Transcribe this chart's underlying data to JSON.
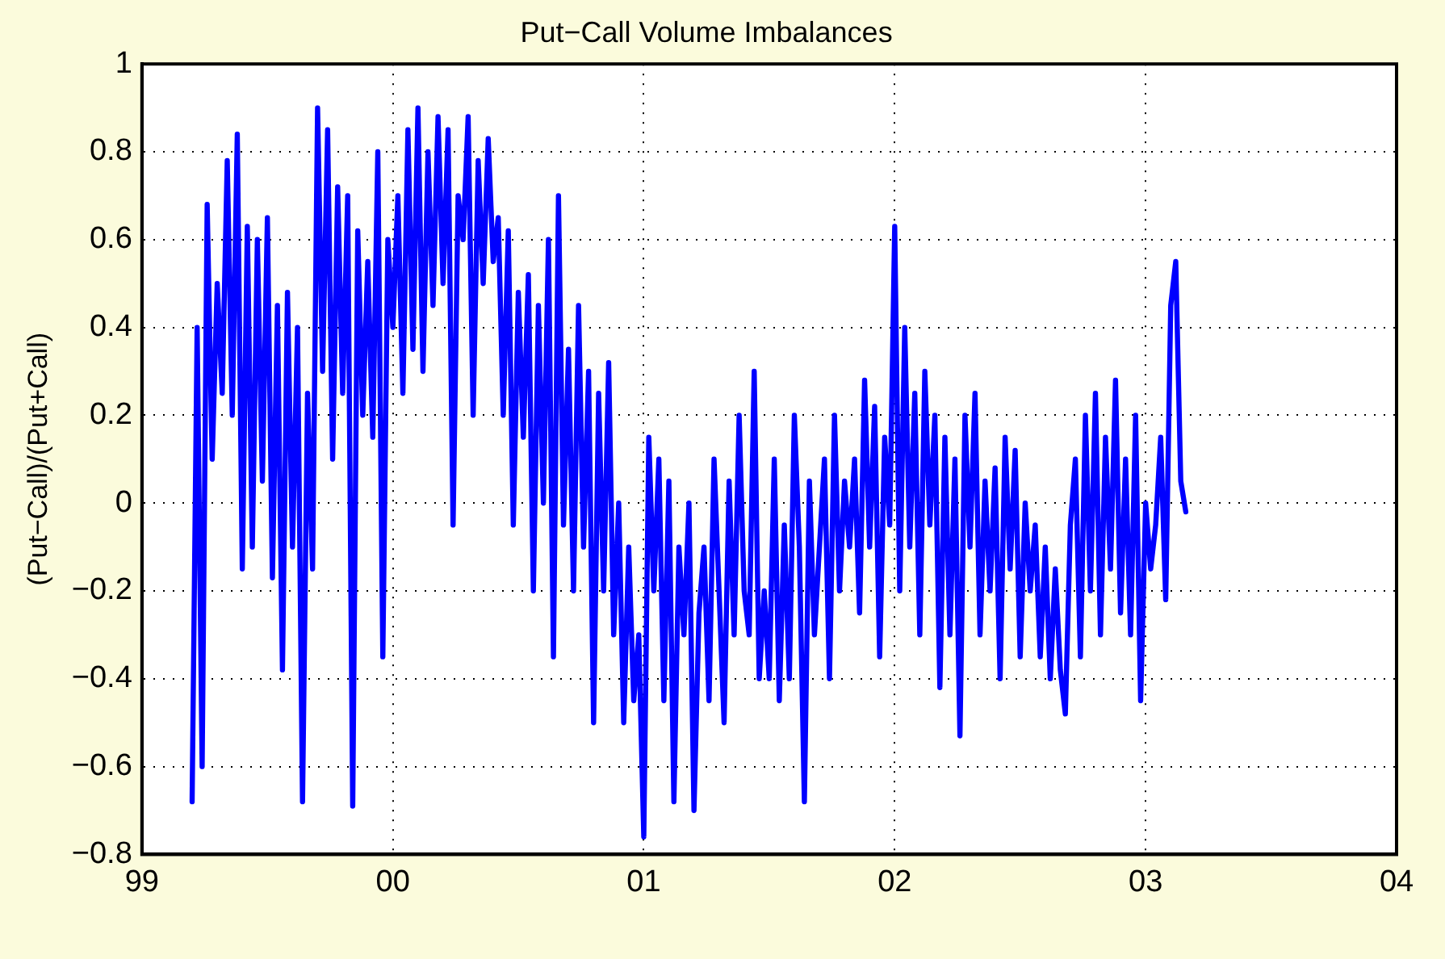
{
  "chart_data": {
    "type": "line",
    "title": "Put−Call Volume Imbalances",
    "ylabel": "(Put−Call)/(Put+Call)",
    "xlim": [
      1999,
      2004
    ],
    "xticks": [
      {
        "value": 1999,
        "label": "99"
      },
      {
        "value": 2000,
        "label": "00"
      },
      {
        "value": 2001,
        "label": "01"
      },
      {
        "value": 2002,
        "label": "02"
      },
      {
        "value": 2003,
        "label": "03"
      },
      {
        "value": 2004,
        "label": "04"
      }
    ],
    "ylim": [
      -0.8,
      1
    ],
    "yticks": [
      {
        "value": -0.8,
        "label": "−0.8"
      },
      {
        "value": -0.6,
        "label": "−0.6"
      },
      {
        "value": -0.4,
        "label": "−0.4"
      },
      {
        "value": -0.2,
        "label": "−0.2"
      },
      0,
      0.2,
      0.4,
      0.6,
      0.8,
      1
    ],
    "grid": true,
    "line_style": "solid",
    "series": [
      {
        "color": "#0000ff",
        "x": [
          1999.2,
          1999.22,
          1999.24,
          1999.26,
          1999.28,
          1999.3,
          1999.32,
          1999.34,
          1999.36,
          1999.38,
          1999.4,
          1999.42,
          1999.44,
          1999.46,
          1999.48,
          1999.5,
          1999.52,
          1999.54,
          1999.56,
          1999.58,
          1999.6,
          1999.62,
          1999.64,
          1999.66,
          1999.68,
          1999.7,
          1999.72,
          1999.74,
          1999.76,
          1999.78,
          1999.8,
          1999.82,
          1999.84,
          1999.86,
          1999.88,
          1999.9,
          1999.92,
          1999.94,
          1999.96,
          1999.98,
          2000.0,
          2000.02,
          2000.04,
          2000.06,
          2000.08,
          2000.1,
          2000.12,
          2000.14,
          2000.16,
          2000.18,
          2000.2,
          2000.22,
          2000.24,
          2000.26,
          2000.28,
          2000.3,
          2000.32,
          2000.34,
          2000.36,
          2000.38,
          2000.4,
          2000.42,
          2000.44,
          2000.46,
          2000.48,
          2000.5,
          2000.52,
          2000.54,
          2000.56,
          2000.58,
          2000.6,
          2000.62,
          2000.64,
          2000.66,
          2000.68,
          2000.7,
          2000.72,
          2000.74,
          2000.76,
          2000.78,
          2000.8,
          2000.82,
          2000.84,
          2000.86,
          2000.88,
          2000.9,
          2000.92,
          2000.94,
          2000.96,
          2000.98,
          2001.0,
          2001.02,
          2001.04,
          2001.06,
          2001.08,
          2001.1,
          2001.12,
          2001.14,
          2001.16,
          2001.18,
          2001.2,
          2001.22,
          2001.24,
          2001.26,
          2001.28,
          2001.3,
          2001.32,
          2001.34,
          2001.36,
          2001.38,
          2001.4,
          2001.42,
          2001.44,
          2001.46,
          2001.48,
          2001.5,
          2001.52,
          2001.54,
          2001.56,
          2001.58,
          2001.6,
          2001.62,
          2001.64,
          2001.66,
          2001.68,
          2001.7,
          2001.72,
          2001.74,
          2001.76,
          2001.78,
          2001.8,
          2001.82,
          2001.84,
          2001.86,
          2001.88,
          2001.9,
          2001.92,
          2001.94,
          2001.96,
          2001.98,
          2002.0,
          2002.02,
          2002.04,
          2002.06,
          2002.08,
          2002.1,
          2002.12,
          2002.14,
          2002.16,
          2002.18,
          2002.2,
          2002.22,
          2002.24,
          2002.26,
          2002.28,
          2002.3,
          2002.32,
          2002.34,
          2002.36,
          2002.38,
          2002.4,
          2002.42,
          2002.44,
          2002.46,
          2002.48,
          2002.5,
          2002.52,
          2002.54,
          2002.56,
          2002.58,
          2002.6,
          2002.62,
          2002.64,
          2002.66,
          2002.68,
          2002.7,
          2002.72,
          2002.74,
          2002.76,
          2002.78,
          2002.8,
          2002.82,
          2002.84,
          2002.86,
          2002.88,
          2002.9,
          2002.92,
          2002.94,
          2002.96,
          2002.98,
          2003.0,
          2003.02,
          2003.04,
          2003.06,
          2003.08,
          2003.1,
          2003.12,
          2003.14,
          2003.16
        ],
        "values": [
          -0.68,
          0.4,
          -0.6,
          0.68,
          0.1,
          0.5,
          0.25,
          0.78,
          0.2,
          0.84,
          -0.15,
          0.63,
          -0.1,
          0.6,
          0.05,
          0.65,
          -0.17,
          0.45,
          -0.38,
          0.48,
          -0.1,
          0.4,
          -0.68,
          0.25,
          -0.15,
          0.9,
          0.3,
          0.85,
          0.1,
          0.72,
          0.25,
          0.7,
          -0.69,
          0.62,
          0.2,
          0.55,
          0.15,
          0.8,
          -0.35,
          0.6,
          0.4,
          0.7,
          0.25,
          0.85,
          0.35,
          0.9,
          0.3,
          0.8,
          0.45,
          0.88,
          0.5,
          0.85,
          -0.05,
          0.7,
          0.6,
          0.88,
          0.2,
          0.78,
          0.5,
          0.83,
          0.55,
          0.65,
          0.2,
          0.62,
          -0.05,
          0.48,
          0.15,
          0.52,
          -0.2,
          0.45,
          0.0,
          0.6,
          -0.35,
          0.7,
          -0.05,
          0.35,
          -0.2,
          0.45,
          -0.1,
          0.3,
          -0.5,
          0.25,
          -0.2,
          0.32,
          -0.3,
          0.0,
          -0.5,
          -0.1,
          -0.45,
          -0.3,
          -0.76,
          0.15,
          -0.2,
          0.1,
          -0.45,
          0.05,
          -0.68,
          -0.1,
          -0.3,
          0.0,
          -0.7,
          -0.25,
          -0.1,
          -0.45,
          0.1,
          -0.2,
          -0.5,
          0.05,
          -0.3,
          0.2,
          -0.2,
          -0.3,
          0.3,
          -0.4,
          -0.2,
          -0.4,
          0.1,
          -0.45,
          -0.05,
          -0.4,
          0.2,
          -0.1,
          -0.68,
          0.05,
          -0.3,
          -0.1,
          0.1,
          -0.4,
          0.2,
          -0.2,
          0.05,
          -0.1,
          0.1,
          -0.25,
          0.28,
          -0.1,
          0.22,
          -0.35,
          0.15,
          -0.05,
          0.63,
          -0.2,
          0.4,
          -0.1,
          0.25,
          -0.3,
          0.3,
          -0.05,
          0.2,
          -0.42,
          0.15,
          -0.3,
          0.1,
          -0.53,
          0.2,
          -0.1,
          0.25,
          -0.3,
          0.05,
          -0.2,
          0.08,
          -0.4,
          0.15,
          -0.15,
          0.12,
          -0.35,
          0.0,
          -0.2,
          -0.05,
          -0.35,
          -0.1,
          -0.4,
          -0.15,
          -0.38,
          -0.48,
          -0.05,
          0.1,
          -0.35,
          0.2,
          -0.2,
          0.25,
          -0.3,
          0.15,
          -0.15,
          0.28,
          -0.25,
          0.1,
          -0.3,
          0.2,
          -0.45,
          0.0,
          -0.15,
          -0.05,
          0.15,
          -0.22,
          0.45,
          0.55,
          0.05,
          -0.02
        ]
      }
    ]
  }
}
